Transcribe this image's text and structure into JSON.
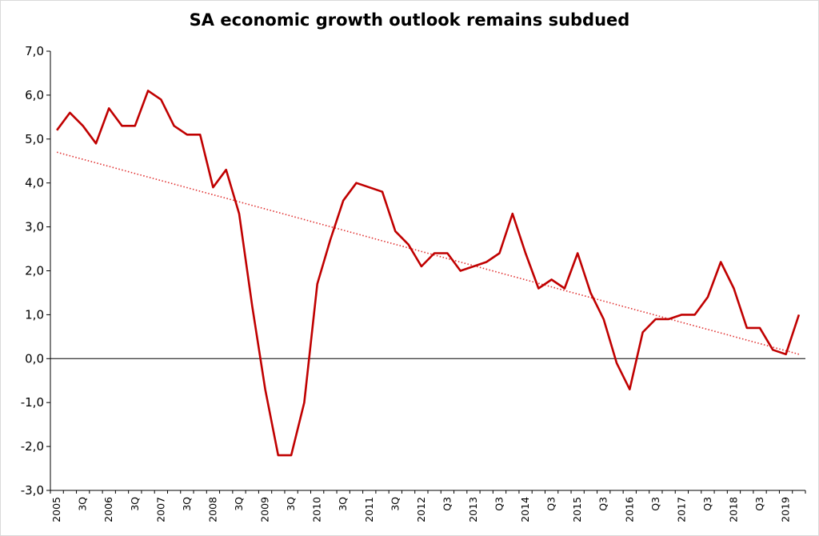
{
  "chart_data": {
    "type": "line",
    "title": "SA economic growth outlook remains subdued",
    "xlabel": "",
    "ylabel": "",
    "ylim": [
      -3.0,
      7.0
    ],
    "yticks": [
      "7,0",
      "6,0",
      "5,0",
      "4,0",
      "3,0",
      "2,0",
      "1,0",
      "0,0",
      "-1,0",
      "-2,0",
      "-3,0"
    ],
    "grid": false,
    "legend": "none",
    "x_tick_labels": [
      {
        "label": "2005",
        "index": 0
      },
      {
        "label": "3Q",
        "index": 2
      },
      {
        "label": "2006",
        "index": 4
      },
      {
        "label": "3Q",
        "index": 6
      },
      {
        "label": "2007",
        "index": 8
      },
      {
        "label": "3Q",
        "index": 10
      },
      {
        "label": "2008",
        "index": 12
      },
      {
        "label": "3Q",
        "index": 14
      },
      {
        "label": "2009",
        "index": 16
      },
      {
        "label": "3Q",
        "index": 18
      },
      {
        "label": "2010",
        "index": 20
      },
      {
        "label": "3Q",
        "index": 22
      },
      {
        "label": "2011",
        "index": 24
      },
      {
        "label": "3Q",
        "index": 26
      },
      {
        "label": "2012",
        "index": 28
      },
      {
        "label": "Q3",
        "index": 30
      },
      {
        "label": "2013",
        "index": 32
      },
      {
        "label": "Q3",
        "index": 34
      },
      {
        "label": "2014",
        "index": 36
      },
      {
        "label": "Q3",
        "index": 38
      },
      {
        "label": "2015",
        "index": 40
      },
      {
        "label": "Q3",
        "index": 42
      },
      {
        "label": "2016",
        "index": 44
      },
      {
        "label": "Q3",
        "index": 46
      },
      {
        "label": "2017",
        "index": 48
      },
      {
        "label": "Q3",
        "index": 50
      },
      {
        "label": "2018",
        "index": 52
      },
      {
        "label": "Q3",
        "index": 54
      },
      {
        "label": "2019",
        "index": 56
      }
    ],
    "series": [
      {
        "type": "line",
        "color": "#c00000",
        "values": [
          5.2,
          5.6,
          5.3,
          4.9,
          5.7,
          5.3,
          5.3,
          6.1,
          5.9,
          5.3,
          5.1,
          5.1,
          3.9,
          4.3,
          3.3,
          1.2,
          -0.7,
          -2.2,
          -2.2,
          -1.0,
          1.7,
          2.7,
          3.6,
          4.0,
          3.9,
          3.8,
          2.9,
          2.6,
          2.1,
          2.4,
          2.4,
          2.0,
          2.1,
          2.2,
          2.4,
          3.3,
          2.4,
          1.6,
          1.8,
          1.6,
          2.4,
          1.5,
          0.9,
          -0.1,
          -0.7,
          0.6,
          0.9,
          0.9,
          1.0,
          1.0,
          1.4,
          2.2,
          1.6,
          0.7,
          0.7,
          0.2,
          0.1,
          1.0
        ]
      },
      {
        "type": "trendline",
        "style": "dotted",
        "color": "#e03030",
        "x": [
          0,
          57
        ],
        "values": [
          4.7,
          0.1
        ]
      }
    ]
  }
}
